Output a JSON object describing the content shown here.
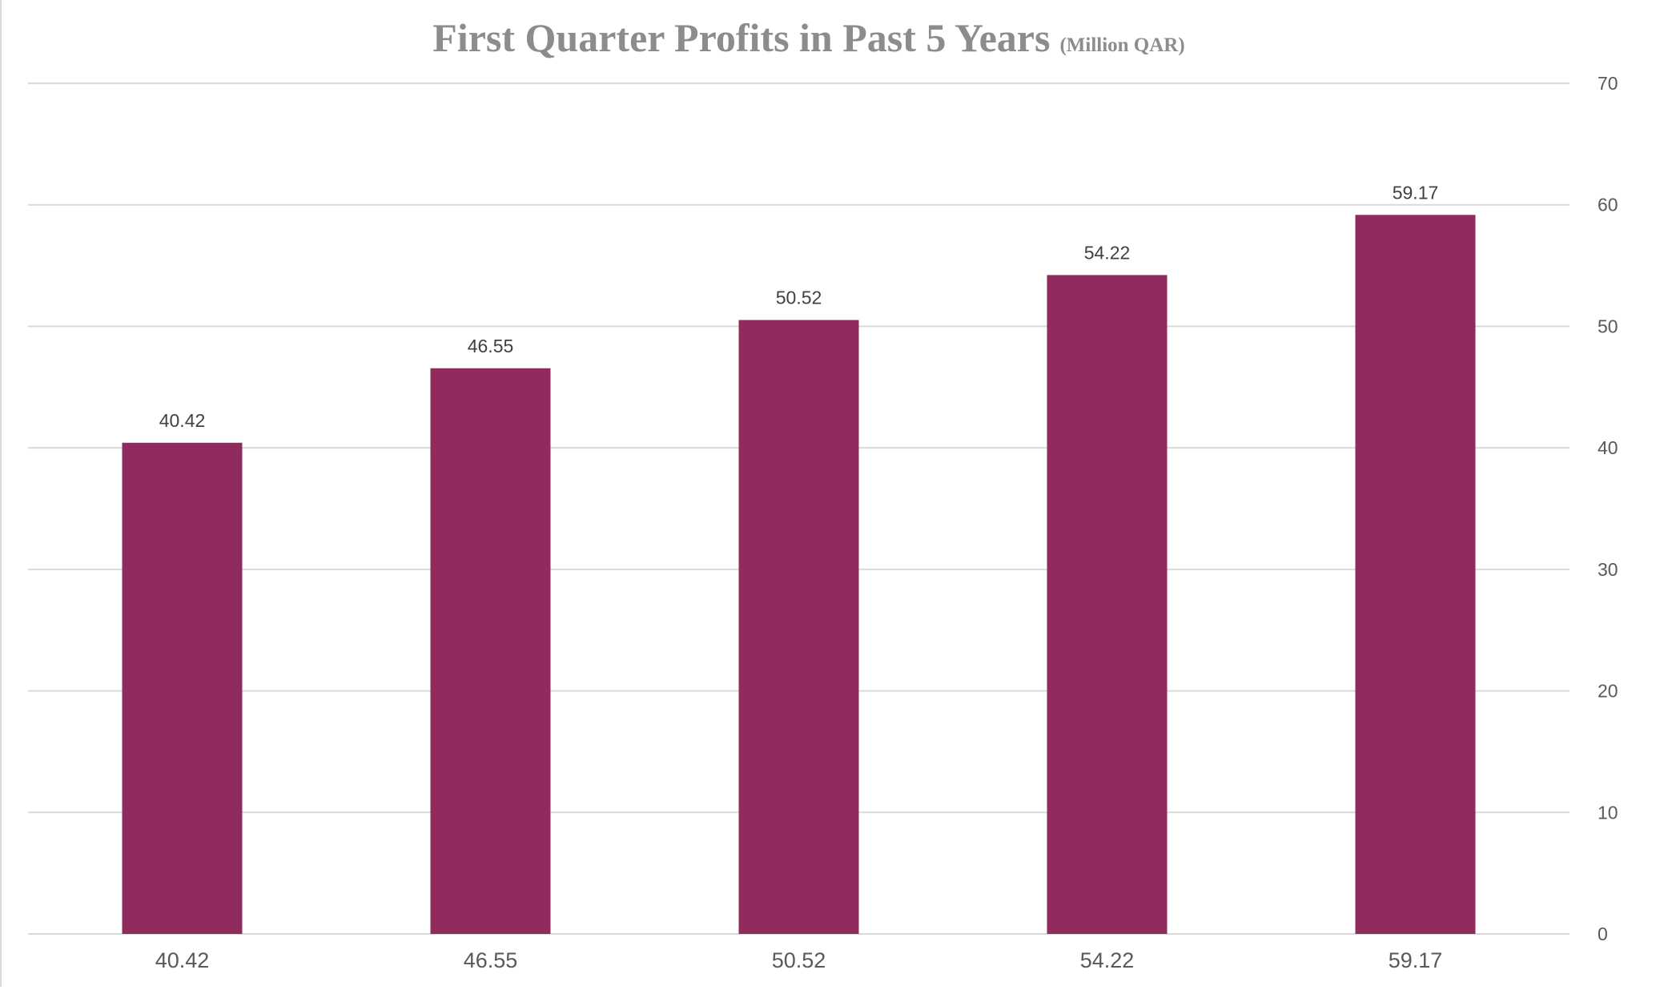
{
  "chart_data": {
    "type": "bar",
    "title": "First Quarter Profits in Past 5 Years",
    "subtitle": "(Million QAR)",
    "categories": [
      "40.42",
      "46.55",
      "50.52",
      "54.22",
      "59.17"
    ],
    "values": [
      40.42,
      46.55,
      50.52,
      54.22,
      59.17
    ],
    "data_labels": [
      "40.42",
      "46.55",
      "50.52",
      "54.22",
      "59.17"
    ],
    "y_ticks": [
      0,
      10,
      20,
      30,
      40,
      50,
      60,
      70
    ],
    "ylim": [
      0,
      70
    ],
    "y_axis_position": "right",
    "grid": true,
    "legend": "none",
    "bar_color": "#8f2b5d",
    "grid_color": "#d9d9d9"
  }
}
